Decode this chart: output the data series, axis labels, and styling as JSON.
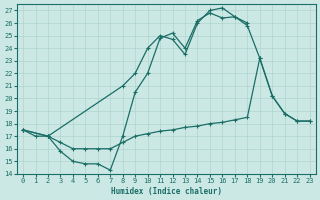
{
  "xlabel": "Humidex (Indice chaleur)",
  "bg_color": "#cce8e5",
  "line_color": "#1a6e66",
  "grid_color": "#aed4cf",
  "xlim": [
    -0.5,
    23.5
  ],
  "ylim": [
    14,
    27.5
  ],
  "yticks": [
    14,
    15,
    16,
    17,
    18,
    19,
    20,
    21,
    22,
    23,
    24,
    25,
    26,
    27
  ],
  "xticks": [
    0,
    1,
    2,
    3,
    4,
    5,
    6,
    7,
    8,
    9,
    10,
    11,
    12,
    13,
    14,
    15,
    16,
    17,
    18,
    19,
    20,
    21,
    22,
    23
  ],
  "line1_x": [
    0,
    1,
    2,
    8,
    9,
    10,
    11,
    12,
    13,
    14,
    15,
    16,
    17,
    18
  ],
  "line1_y": [
    17.5,
    17.0,
    17.0,
    21.0,
    22.0,
    24.0,
    25.0,
    24.7,
    23.5,
    26.0,
    27.0,
    27.2,
    26.5,
    26.0
  ],
  "line2_x": [
    0,
    2,
    3,
    4,
    5,
    6,
    7,
    8,
    9,
    10,
    11,
    12,
    13,
    14,
    15,
    16,
    17,
    18,
    19,
    20,
    21,
    22,
    23
  ],
  "line2_y": [
    17.5,
    17.0,
    16.5,
    16.0,
    16.0,
    16.0,
    16.0,
    16.5,
    17.0,
    17.2,
    17.4,
    17.5,
    17.7,
    17.8,
    18.0,
    18.1,
    18.3,
    18.5,
    23.2,
    20.2,
    18.8,
    18.2,
    18.2
  ],
  "line3_x": [
    0,
    2,
    3,
    4,
    5,
    6,
    7,
    8,
    9,
    10,
    11,
    12,
    13,
    14,
    15,
    16,
    17,
    18,
    19,
    20,
    21,
    22,
    23
  ],
  "line3_y": [
    17.5,
    17.0,
    15.8,
    15.0,
    14.8,
    14.8,
    14.3,
    17.0,
    20.5,
    22.0,
    24.8,
    25.2,
    24.0,
    26.2,
    26.8,
    26.4,
    26.5,
    25.8,
    23.2,
    20.2,
    18.8,
    18.2,
    18.2
  ]
}
